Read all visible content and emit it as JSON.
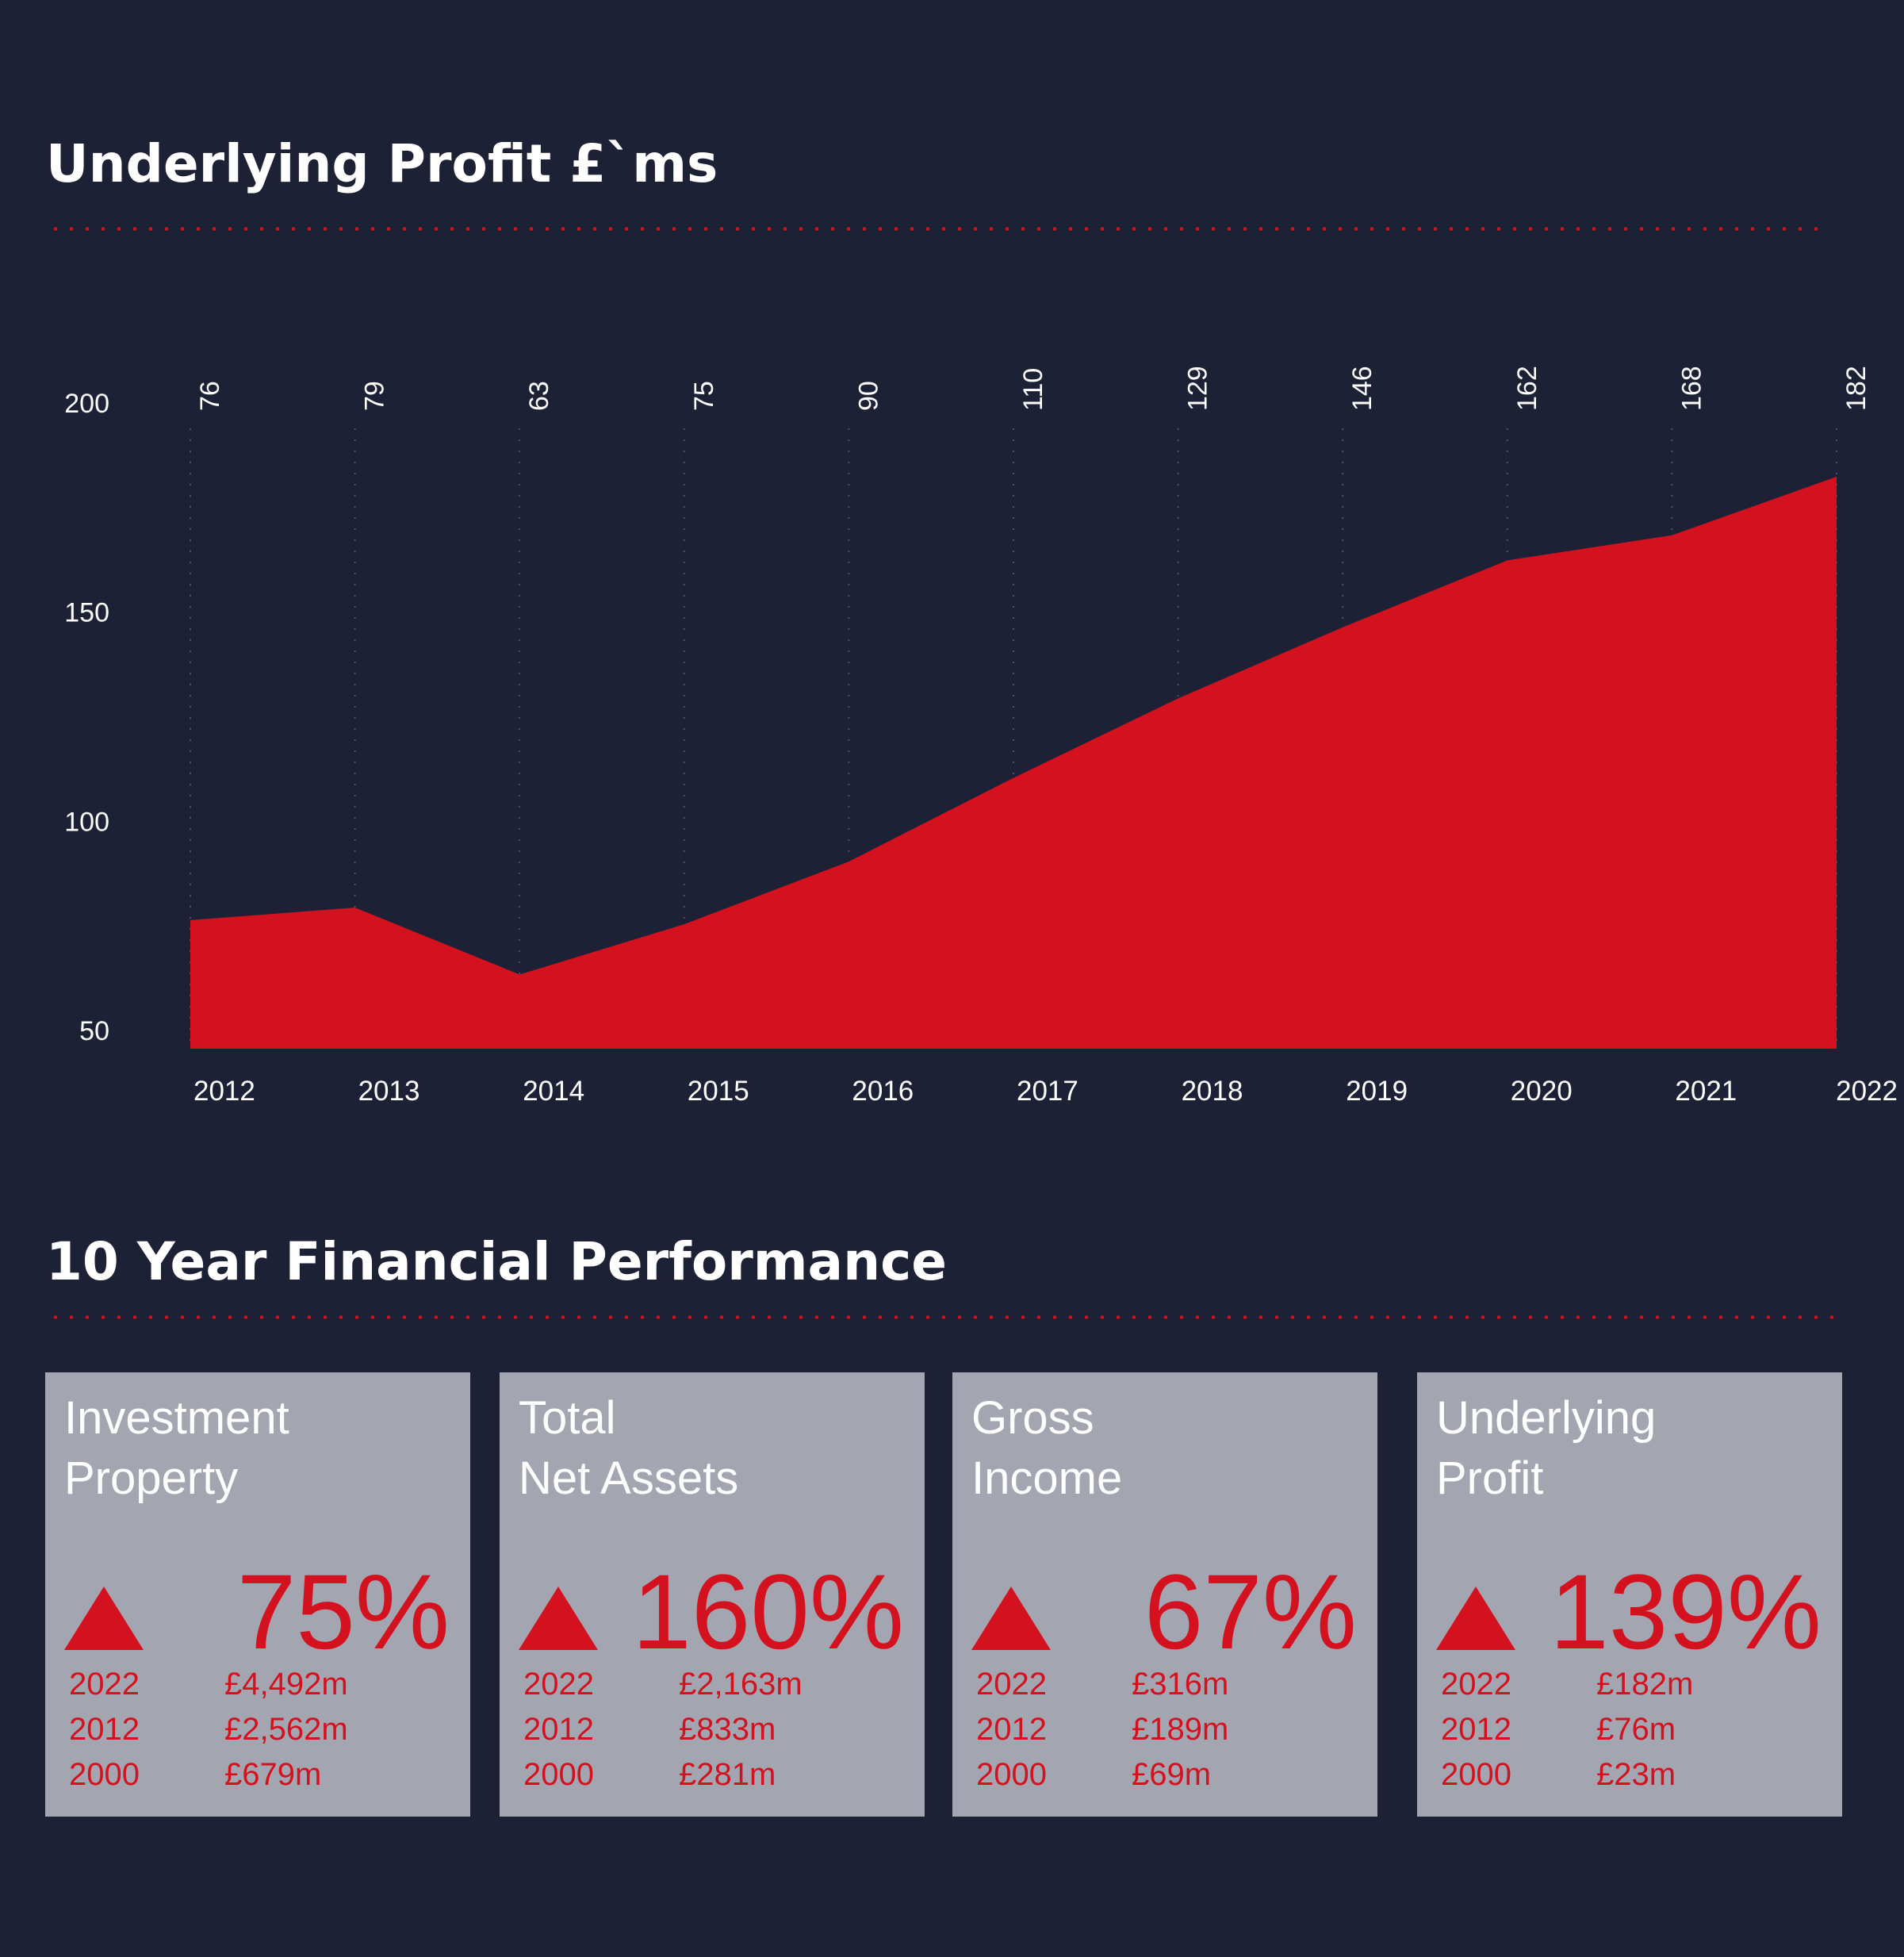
{
  "chart_data": {
    "type": "area",
    "title": "Underlying Profit £`ms",
    "x": [
      "2012",
      "2013",
      "2014",
      "2015",
      "2016",
      "2017",
      "2018",
      "2019",
      "2020",
      "2021",
      "2022"
    ],
    "values": [
      76,
      79,
      63,
      75,
      90,
      110,
      129,
      146,
      162,
      168,
      182
    ],
    "data_labels": [
      "76",
      "79",
      "63",
      "75",
      "90",
      "110",
      "129",
      "146",
      "162",
      "168",
      "182"
    ],
    "y_ticks": [
      "200",
      "150",
      "100",
      "50"
    ],
    "xlabel": "",
    "ylabel": "",
    "grid": "vertical dotted",
    "fill_color": "#d4111e"
  },
  "performance": {
    "title": "10 Year Financial Performance",
    "cards": [
      {
        "title_lines": [
          "Investment",
          "Property"
        ],
        "change": "75%",
        "rows": [
          {
            "year": "2022",
            "value": "£4,492m"
          },
          {
            "year": "2012",
            "value": "£2,562m"
          },
          {
            "year": "2000",
            "value": "£679m"
          }
        ]
      },
      {
        "title_lines": [
          "Total",
          "Net Assets"
        ],
        "change": "160%",
        "rows": [
          {
            "year": "2022",
            "value": "£2,163m"
          },
          {
            "year": "2012",
            "value": "£833m"
          },
          {
            "year": "2000",
            "value": "£281m"
          }
        ]
      },
      {
        "title_lines": [
          "Gross",
          "Income"
        ],
        "change": "67%",
        "rows": [
          {
            "year": "2022",
            "value": "£316m"
          },
          {
            "year": "2012",
            "value": "£189m"
          },
          {
            "year": "2000",
            "value": "£69m"
          }
        ]
      },
      {
        "title_lines": [
          "Underlying",
          "Profit"
        ],
        "change": "139%",
        "rows": [
          {
            "year": "2022",
            "value": "£182m"
          },
          {
            "year": "2012",
            "value": "£76m"
          },
          {
            "year": "2000",
            "value": "£23m"
          }
        ]
      }
    ]
  },
  "colors": {
    "background": "#1d2135",
    "accent": "#d4111e",
    "card": "#a3a6b0",
    "text": "#ffffff"
  }
}
